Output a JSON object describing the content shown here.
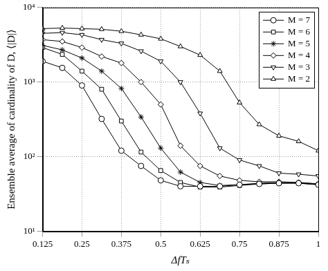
{
  "chart_data": {
    "type": "line",
    "x_label": "ΔfTₛ",
    "y_label": "Ensemble average of cardinality of D, ⟨|D|⟩",
    "x": [
      0.125,
      0.1875,
      0.25,
      0.3125,
      0.375,
      0.4375,
      0.5,
      0.5625,
      0.625,
      0.6875,
      0.75,
      0.8125,
      0.875,
      0.9375,
      1
    ],
    "series": [
      {
        "name": "M = 7",
        "color": "#000000",
        "marker": "circle",
        "line_style": "solid",
        "values": [
          1900,
          1550,
          900,
          320,
          120,
          75,
          48,
          40,
          40,
          40,
          42,
          43,
          44,
          44,
          42
        ]
      },
      {
        "name": "M = 6",
        "color": "#000000",
        "marker": "square",
        "line_style": "solid",
        "values": [
          2900,
          2350,
          1400,
          800,
          300,
          115,
          65,
          45,
          39,
          39,
          41,
          43,
          44,
          44,
          42
        ]
      },
      {
        "name": "M = 5",
        "color": "#000000",
        "marker": "asterisk",
        "line_style": "solid",
        "values": [
          3100,
          2700,
          2100,
          1400,
          820,
          340,
          130,
          62,
          45,
          41,
          42,
          44,
          45,
          45,
          43
        ]
      },
      {
        "name": "M = 4",
        "color": "#000000",
        "marker": "diamond",
        "line_style": "solid",
        "values": [
          3700,
          3500,
          2900,
          2200,
          1800,
          1000,
          500,
          140,
          75,
          55,
          48,
          46,
          46,
          45,
          43
        ]
      },
      {
        "name": "M = 3",
        "color": "#000000",
        "marker": "triangle-down",
        "line_style": "solid",
        "values": [
          4500,
          4600,
          4300,
          3700,
          3300,
          2600,
          1900,
          1000,
          380,
          130,
          90,
          75,
          60,
          58,
          55
        ]
      },
      {
        "name": "M = 2",
        "color": "#000000",
        "marker": "triangle-up",
        "line_style": "solid",
        "values": [
          5200,
          5300,
          5200,
          5100,
          4800,
          4300,
          3800,
          3000,
          2300,
          1400,
          530,
          270,
          190,
          160,
          120
        ]
      }
    ],
    "xlim": [
      0.125,
      1
    ],
    "xticks": [
      0.125,
      0.25,
      0.375,
      0.5,
      0.625,
      0.75,
      0.875,
      1
    ],
    "ylim": [
      10,
      10000
    ],
    "yticks": [
      {
        "value": 10,
        "label": "10¹"
      },
      {
        "value": 100,
        "label": "10²"
      },
      {
        "value": 1000,
        "label": "10³"
      },
      {
        "value": 10000,
        "label": "10⁴"
      }
    ],
    "log": "y",
    "grid": true,
    "legend": "top-right"
  }
}
